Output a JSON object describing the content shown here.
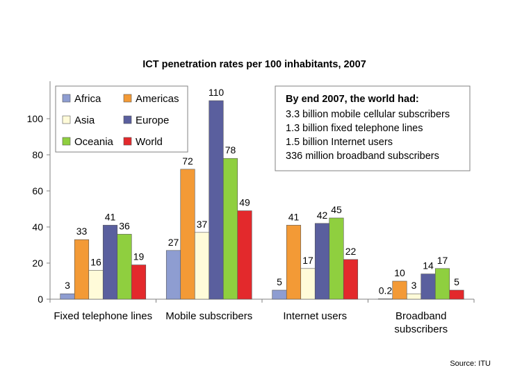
{
  "chart_data": {
    "type": "bar",
    "title": "ICT penetration rates per 100 inhabitants, 2007",
    "xlabel": "",
    "ylabel": "",
    "ylim": [
      0,
      115
    ],
    "yticks": [
      0,
      20,
      40,
      60,
      80,
      100
    ],
    "categories": [
      [
        "Fixed telephone lines"
      ],
      [
        "Mobile subscribers"
      ],
      [
        "Internet users"
      ],
      [
        "Broadband",
        "subscribers"
      ]
    ],
    "series": [
      {
        "name": "Africa",
        "color": "#8e9dd1",
        "values": [
          3,
          27,
          5,
          0.2
        ],
        "labels": [
          "3",
          "27",
          "5",
          "0.2"
        ]
      },
      {
        "name": "Americas",
        "color": "#f39a36",
        "values": [
          33,
          72,
          41,
          10
        ],
        "labels": [
          "33",
          "72",
          "41",
          "10"
        ]
      },
      {
        "name": "Asia",
        "color": "#fffbd9",
        "values": [
          16,
          37,
          17,
          3
        ],
        "labels": [
          "16",
          "37",
          "17",
          "3"
        ]
      },
      {
        "name": "Europe",
        "color": "#5a5f9e",
        "values": [
          41,
          110,
          42,
          14
        ],
        "labels": [
          "41",
          "110",
          "42",
          "14"
        ]
      },
      {
        "name": "Oceania",
        "color": "#8fcf3f",
        "values": [
          36,
          78,
          45,
          17
        ],
        "labels": [
          "36",
          "78",
          "45",
          "17"
        ]
      },
      {
        "name": "World",
        "color": "#e3292c",
        "values": [
          19,
          49,
          22,
          5
        ],
        "labels": [
          "19",
          "49",
          "22",
          "5"
        ]
      }
    ],
    "legend_position": "top-left",
    "grid": false,
    "annotation_box": {
      "title": "By end 2007, the world had:",
      "lines": [
        "3.3 billion mobile cellular subscribers",
        "1.3 billion fixed telephone lines",
        "1.5 billion Internet users",
        "336 million broadband subscribers"
      ]
    },
    "source": "Source: ITU"
  }
}
